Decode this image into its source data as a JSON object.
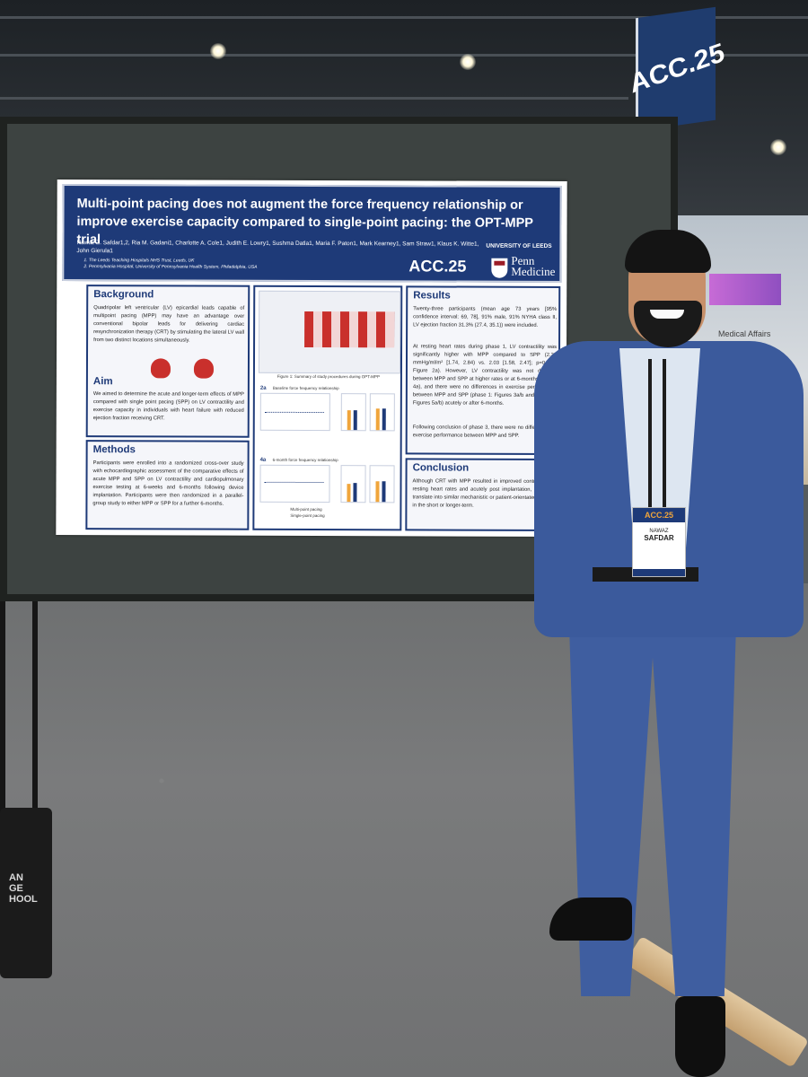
{
  "scene": {
    "booth_sign": "ACC.25",
    "background_sign": "Medical Affairs",
    "bag_text": "AN\nGE\nHOOL"
  },
  "poster": {
    "title": "Multi-point pacing does not augment the force frequency relationship or improve exercise capacity compared to single-point pacing: the OPT-MPP trial",
    "authors": "Nawaz Z. Safdar1,2, Ria M. Gadani1, Charlotte A. Cole1, Judith E. Lowry1, Sushma Datla1, Maria F. Paton1, Mark Kearney1, Sam Straw1, Klaus K. Witte1, John Gierula1",
    "affiliation_1": "1.   The Leeds Teaching Hospitals NHS Trust, Leeds, UK",
    "affiliation_2": "2.   Pennsylvania Hospital, University of Pennsylvania Health System, Philadelphia, USA",
    "university": "UNIVERSITY OF LEEDS",
    "conference": "ACC.25",
    "penn_logo": "Penn Medicine",
    "background_heading": "Background",
    "background_text": "Quadripolar left ventricular (LV) epicardial leads capable of multipoint pacing (MPP) may have an advantage over conventional bipolar leads for delivering cardiac resynchronization therapy (CRT) by stimulating the lateral LV wall from two distinct locations simultaneously.",
    "aim_heading": "Aim",
    "aim_text": "We aimed to determine the acute and longer-term effects of MPP compared with single point pacing (SPP) on LV contractility and exercise capacity in individuals with heart failure with reduced ejection fraction receiving CRT.",
    "methods_heading": "Methods",
    "methods_text": "Participants were enrolled into a randomized cross-over study with echocardiographic assessment of the comparative effects of acute MPP and SPP on LV contractility and cardiopulmonary exercise testing at 6-weeks and 6-months following device implantation. Participants were then randomized in a parallel-group study to either MPP or SPP for a further 6-months.",
    "results_heading": "Results",
    "results_text_1": "Twenty-three participants (mean age 73 years [95% confidence interval: 69, 78], 91% male, 91% NYHA class II, LV ejection fraction 31.3% (27.4, 35.1)) were included.",
    "results_text_2": "At resting heart rates during phase 1, LV contractility was significantly higher with MPP compared to SPP (2.29 mmHg/ml/m² [1.74, 2.84) vs. 2.03 [1.58, 2.47]; p=0.019; Figure 2a). However, LV contractility was not different between MPP and SPP at higher rates or at 6-months (Figure 4a), and there were no differences in exercise performance between MPP and SPP (phase 1: Figures 3a/b and phase 2: Figures 5a/b) acutely or after 6-months.",
    "results_text_3": "Following conclusion of phase 3, there were no differences in exercise performance between MPP and SPP.",
    "conclusion_heading": "Conclusion",
    "conclusion_text": "Although CRT with MPP resulted in improved contractility at resting heart rates and acutely post implantation, it did not translate into similar mechanistic or patient-orientated benefits in the short or longer-term.",
    "figure1_caption": "Figure 1: Summary of study procedures during OPT-MPP",
    "fig2_label": "2a",
    "fig2_title": "Baseline force frequency relationship",
    "fig4_label": "4a",
    "fig4_title": "6-month force frequency relationship",
    "legend_mpp": "Multi-point pacing",
    "legend_spp": "Single-point pacing"
  },
  "badge": {
    "event": "ACC.25",
    "first_name": "NAWAZ",
    "last_name": "SAFDAR"
  },
  "colors": {
    "poster_navy": "#1e3a78",
    "highlight_red": "#9b1c26",
    "badge_orange": "#f0a53b",
    "suit_blue": "#3b5a9c"
  }
}
